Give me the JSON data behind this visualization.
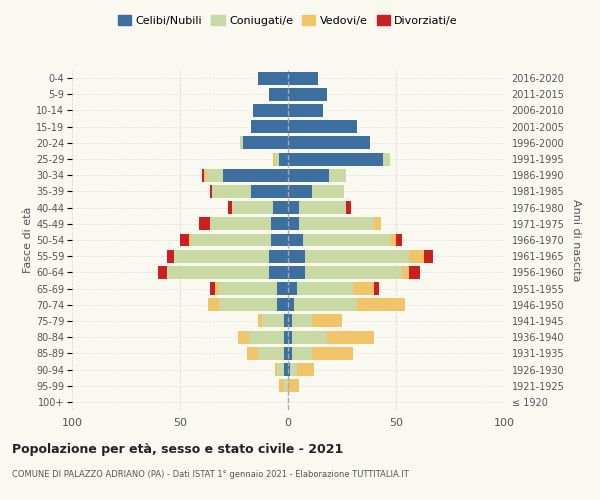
{
  "age_groups": [
    "100+",
    "95-99",
    "90-94",
    "85-89",
    "80-84",
    "75-79",
    "70-74",
    "65-69",
    "60-64",
    "55-59",
    "50-54",
    "45-49",
    "40-44",
    "35-39",
    "30-34",
    "25-29",
    "20-24",
    "15-19",
    "10-14",
    "5-9",
    "0-4"
  ],
  "birth_years": [
    "≤ 1920",
    "1921-1925",
    "1926-1930",
    "1931-1935",
    "1936-1940",
    "1941-1945",
    "1946-1950",
    "1951-1955",
    "1956-1960",
    "1961-1965",
    "1966-1970",
    "1971-1975",
    "1976-1980",
    "1981-1985",
    "1986-1990",
    "1991-1995",
    "1996-2000",
    "2001-2005",
    "2006-2010",
    "2011-2015",
    "2016-2020"
  ],
  "males": {
    "celibi": [
      0,
      0,
      2,
      2,
      2,
      2,
      5,
      5,
      9,
      9,
      8,
      8,
      7,
      17,
      30,
      4,
      21,
      17,
      16,
      9,
      14
    ],
    "coniugati": [
      0,
      2,
      3,
      12,
      16,
      10,
      27,
      27,
      47,
      44,
      37,
      28,
      19,
      18,
      8,
      2,
      1,
      0,
      0,
      0,
      0
    ],
    "vedovi": [
      0,
      2,
      1,
      5,
      5,
      2,
      5,
      2,
      0,
      0,
      1,
      0,
      0,
      0,
      1,
      1,
      0,
      0,
      0,
      0,
      0
    ],
    "divorziati": [
      0,
      0,
      0,
      0,
      0,
      0,
      0,
      2,
      4,
      3,
      4,
      5,
      2,
      1,
      1,
      0,
      0,
      0,
      0,
      0,
      0
    ]
  },
  "females": {
    "nubili": [
      0,
      0,
      1,
      2,
      2,
      2,
      3,
      4,
      8,
      8,
      7,
      5,
      5,
      11,
      19,
      44,
      38,
      32,
      16,
      18,
      14
    ],
    "coniugate": [
      0,
      0,
      3,
      9,
      16,
      9,
      29,
      26,
      45,
      48,
      40,
      35,
      22,
      15,
      8,
      3,
      0,
      0,
      0,
      0,
      0
    ],
    "vedove": [
      0,
      5,
      8,
      19,
      22,
      14,
      22,
      10,
      3,
      7,
      3,
      3,
      0,
      0,
      0,
      0,
      0,
      0,
      0,
      0,
      0
    ],
    "divorziate": [
      0,
      0,
      0,
      0,
      0,
      0,
      0,
      2,
      5,
      4,
      3,
      0,
      2,
      0,
      0,
      0,
      0,
      0,
      0,
      0,
      0
    ]
  },
  "colors": {
    "celibi_nubili": "#3c6fa0",
    "coniugati": "#c8d9a4",
    "vedovi": "#f2c46a",
    "divorziati": "#cc2020"
  },
  "xlim": 100,
  "title": "Popolazione per età, sesso e stato civile - 2021",
  "subtitle": "COMUNE DI PALAZZO ADRIANO (PA) - Dati ISTAT 1° gennaio 2021 - Elaborazione TUTTITALIA.IT",
  "ylabel_left": "Fasce di età",
  "ylabel_right": "Anni di nascita",
  "background_color": "#f9f9f2"
}
